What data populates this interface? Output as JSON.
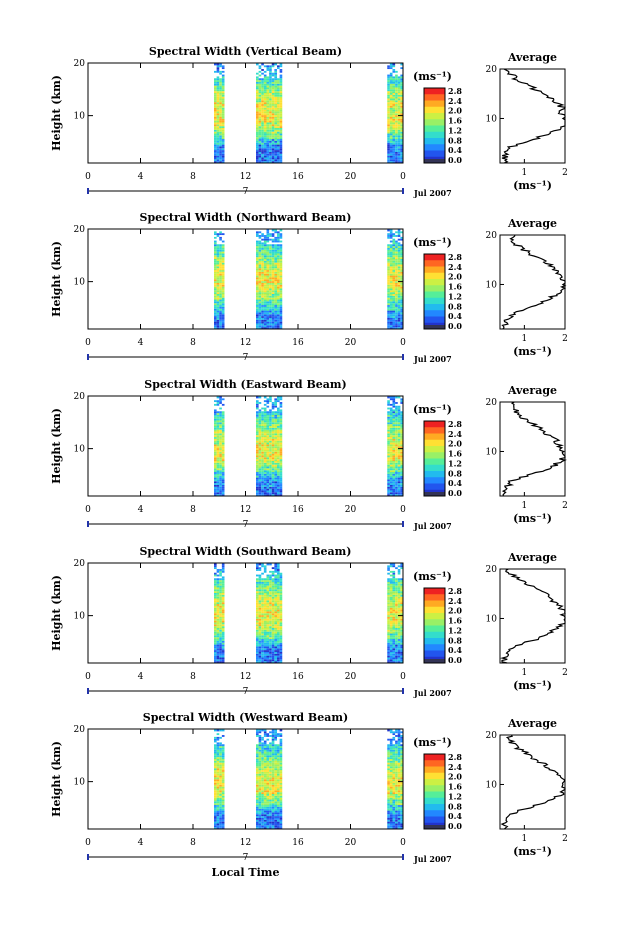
{
  "chart_data": [
    {
      "type": "heatmap",
      "title": "Spectral Width (Vertical Beam)",
      "ylabel": "Height (km)",
      "x_ticks": [
        "0",
        "4",
        "8",
        "12",
        "16",
        "20",
        "0"
      ],
      "y_ticks": [
        "20",
        "10"
      ],
      "date_marker": "7",
      "date_label": "Jul 2007",
      "xlim": [
        0,
        24
      ],
      "ylim": [
        1,
        20
      ],
      "data_columns_hours": [
        [
          9.6,
          10.4
        ],
        [
          12.8,
          14.8
        ],
        [
          22.8,
          24.0
        ]
      ],
      "colorbar": {
        "unit": "(ms⁻¹)",
        "ticks": [
          "2.8",
          "2.4",
          "2.0",
          "1.6",
          "1.2",
          "0.8",
          "0.4",
          "0.0"
        ]
      },
      "average_profile": {
        "title": "Average",
        "xlabel": "(ms⁻¹)",
        "x_ticks": [
          "1",
          "2"
        ],
        "y_ticks": [
          "20",
          "10"
        ],
        "xlim": [
          0.4,
          2.0
        ],
        "ylim": [
          1,
          20
        ],
        "height_km": [
          1,
          2,
          3,
          4,
          5,
          6,
          7,
          8,
          9,
          10,
          11,
          12,
          13,
          14,
          15,
          16,
          17,
          18,
          19,
          20
        ],
        "width_ms": [
          0.5,
          0.5,
          0.55,
          0.6,
          0.9,
          1.3,
          1.6,
          1.9,
          2.05,
          2.0,
          1.9,
          1.95,
          1.85,
          1.7,
          1.5,
          1.25,
          1.0,
          0.8,
          0.65,
          0.55
        ]
      }
    },
    {
      "type": "heatmap",
      "title": "Spectral Width (Northward Beam)",
      "ylabel": "Height (km)",
      "x_ticks": [
        "0",
        "4",
        "8",
        "12",
        "16",
        "20",
        "0"
      ],
      "y_ticks": [
        "20",
        "10"
      ],
      "date_marker": "7",
      "date_label": "Jul 2007",
      "xlim": [
        0,
        24
      ],
      "ylim": [
        1,
        20
      ],
      "data_columns_hours": [
        [
          9.6,
          10.4
        ],
        [
          12.8,
          14.8
        ],
        [
          22.8,
          24.0
        ]
      ],
      "colorbar": {
        "unit": "(ms⁻¹)",
        "ticks": [
          "2.8",
          "2.4",
          "2.0",
          "1.6",
          "1.2",
          "0.8",
          "0.4",
          "0.0"
        ]
      },
      "average_profile": {
        "title": "Average",
        "xlabel": "(ms⁻¹)",
        "x_ticks": [
          "1",
          "2"
        ],
        "y_ticks": [
          "20",
          "10"
        ],
        "xlim": [
          0.4,
          2.0
        ],
        "ylim": [
          1,
          20
        ],
        "height_km": [
          1,
          2,
          3,
          4,
          5,
          6,
          7,
          8,
          9,
          10,
          11,
          12,
          13,
          14,
          15,
          16,
          17,
          18,
          19,
          20
        ],
        "width_ms": [
          0.5,
          0.55,
          0.6,
          0.75,
          1.0,
          1.3,
          1.6,
          1.8,
          1.95,
          2.0,
          1.95,
          1.9,
          1.75,
          1.6,
          1.4,
          1.2,
          1.0,
          0.8,
          0.7,
          0.7
        ]
      }
    },
    {
      "type": "heatmap",
      "title": "Spectral Width (Eastward Beam)",
      "ylabel": "Height (km)",
      "x_ticks": [
        "0",
        "4",
        "8",
        "12",
        "16",
        "20",
        "0"
      ],
      "y_ticks": [
        "20",
        "10"
      ],
      "date_marker": "7",
      "date_label": "Jul 2007",
      "xlim": [
        0,
        24
      ],
      "ylim": [
        1,
        20
      ],
      "data_columns_hours": [
        [
          9.6,
          10.4
        ],
        [
          12.8,
          14.8
        ],
        [
          22.8,
          24.0
        ]
      ],
      "colorbar": {
        "unit": "(ms⁻¹)",
        "ticks": [
          "2.8",
          "2.4",
          "2.0",
          "1.6",
          "1.2",
          "0.8",
          "0.4",
          "0.0"
        ]
      },
      "average_profile": {
        "title": "Average",
        "xlabel": "(ms⁻¹)",
        "x_ticks": [
          "1",
          "2"
        ],
        "y_ticks": [
          "20",
          "10"
        ],
        "xlim": [
          0.4,
          2.0
        ],
        "ylim": [
          1,
          20
        ],
        "height_km": [
          1,
          2,
          3,
          4,
          5,
          6,
          7,
          8,
          9,
          10,
          11,
          12,
          13,
          14,
          15,
          16,
          17,
          18,
          19,
          20
        ],
        "width_ms": [
          0.5,
          0.55,
          0.6,
          0.7,
          1.0,
          1.4,
          1.7,
          1.9,
          2.0,
          1.95,
          1.85,
          1.8,
          1.65,
          1.5,
          1.3,
          1.1,
          0.9,
          0.8,
          0.7,
          0.75
        ]
      }
    },
    {
      "type": "heatmap",
      "title": "Spectral Width (Southward Beam)",
      "ylabel": "Height (km)",
      "x_ticks": [
        "0",
        "4",
        "8",
        "12",
        "16",
        "20",
        "0"
      ],
      "y_ticks": [
        "20",
        "10"
      ],
      "date_marker": "7",
      "date_label": "Jul 2007",
      "xlim": [
        0,
        24
      ],
      "ylim": [
        1,
        20
      ],
      "data_columns_hours": [
        [
          9.6,
          10.4
        ],
        [
          12.8,
          14.8
        ],
        [
          22.8,
          24.0
        ]
      ],
      "colorbar": {
        "unit": "(ms⁻¹)",
        "ticks": [
          "2.8",
          "2.4",
          "2.0",
          "1.6",
          "1.2",
          "0.8",
          "0.4",
          "0.0"
        ]
      },
      "average_profile": {
        "title": "Average",
        "xlabel": "(ms⁻¹)",
        "x_ticks": [
          "1",
          "2"
        ],
        "y_ticks": [
          "20",
          "10"
        ],
        "xlim": [
          0.4,
          2.0
        ],
        "ylim": [
          1,
          20
        ],
        "height_km": [
          1,
          2,
          3,
          4,
          5,
          6,
          7,
          8,
          9,
          10,
          11,
          12,
          13,
          14,
          15,
          16,
          17,
          18,
          19,
          20
        ],
        "width_ms": [
          0.5,
          0.5,
          0.55,
          0.65,
          1.0,
          1.35,
          1.6,
          1.85,
          1.95,
          2.0,
          1.95,
          1.9,
          1.8,
          1.65,
          1.5,
          1.3,
          1.05,
          0.85,
          0.65,
          0.6
        ]
      }
    },
    {
      "type": "heatmap",
      "title": "Spectral Width (Westward Beam)",
      "ylabel": "Height (km)",
      "xlabel": "Local Time",
      "x_ticks": [
        "0",
        "4",
        "8",
        "12",
        "16",
        "20",
        "0"
      ],
      "y_ticks": [
        "20",
        "10"
      ],
      "date_marker": "7",
      "date_label": "Jul 2007",
      "xlim": [
        0,
        24
      ],
      "ylim": [
        1,
        20
      ],
      "data_columns_hours": [
        [
          9.6,
          10.4
        ],
        [
          12.8,
          14.8
        ],
        [
          22.8,
          24.0
        ]
      ],
      "colorbar": {
        "unit": "(ms⁻¹)",
        "ticks": [
          "2.8",
          "2.4",
          "2.0",
          "1.6",
          "1.2",
          "0.8",
          "0.4",
          "0.0"
        ]
      },
      "average_profile": {
        "title": "Average",
        "xlabel": "(ms⁻¹)",
        "x_ticks": [
          "1",
          "2"
        ],
        "y_ticks": [
          "20",
          "10"
        ],
        "xlim": [
          0.4,
          2.0
        ],
        "ylim": [
          1,
          20
        ],
        "height_km": [
          1,
          2,
          3,
          4,
          5,
          6,
          7,
          8,
          9,
          10,
          11,
          12,
          13,
          14,
          15,
          16,
          17,
          18,
          19,
          20
        ],
        "width_ms": [
          0.5,
          0.5,
          0.55,
          0.7,
          1.0,
          1.4,
          1.65,
          1.9,
          2.0,
          1.95,
          1.9,
          1.85,
          1.7,
          1.5,
          1.3,
          1.1,
          0.9,
          0.75,
          0.65,
          0.6
        ]
      }
    }
  ]
}
